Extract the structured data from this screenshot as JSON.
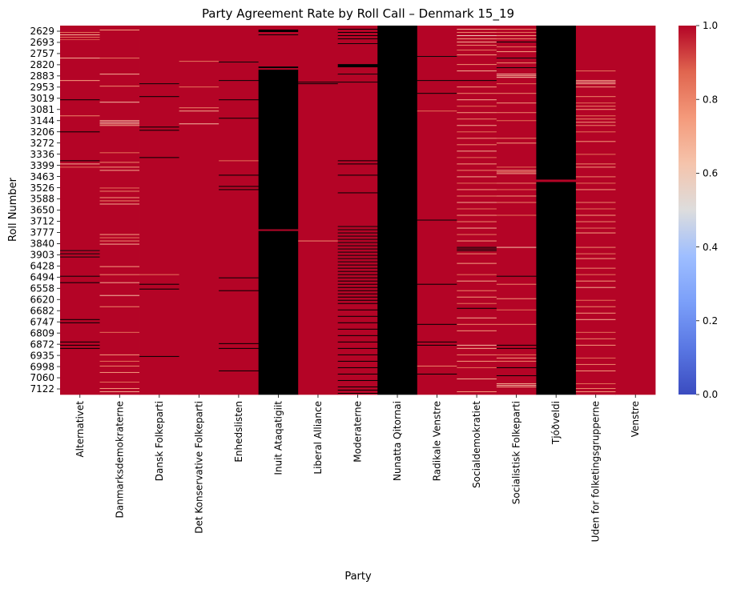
{
  "chart_data": {
    "type": "heatmap",
    "title": "Party Agreement Rate by Roll Call – Denmark 15_19",
    "xlabel": "Party",
    "ylabel": "Roll Number",
    "colormap": "coolwarm",
    "color_low": "#3b4cc0",
    "color_mid": "#dddddd",
    "color_high": "#b40426",
    "missing_color": "#000000",
    "vmin": 0.0,
    "vmax": 1.0,
    "colorbar_ticks": [
      "0.0",
      "0.2",
      "0.4",
      "0.6",
      "0.8",
      "1.0"
    ],
    "parties": [
      "Alternativet",
      "Danmarksdemokraterne",
      "Dansk Folkeparti",
      "Det Konservative Folkeparti",
      "Enhedslisten",
      "Inuit Ataqatigiit",
      "Liberal Alliance",
      "Moderaterne",
      "Nunatta Qitornai",
      "Radikale Venstre",
      "Socialdemokratiet",
      "Socialistisk Folkeparti",
      "Tjóðveldi",
      "Uden for folketingsgrupperne",
      "Venstre"
    ],
    "roll_numbers": [
      "2629",
      "2693",
      "2757",
      "2820",
      "2883",
      "2953",
      "3019",
      "3081",
      "3144",
      "3206",
      "3272",
      "3336",
      "3399",
      "3463",
      "3526",
      "3588",
      "3650",
      "3712",
      "3777",
      "3840",
      "3903",
      "6428",
      "6494",
      "6558",
      "6620",
      "6682",
      "6747",
      "6809",
      "6872",
      "6935",
      "6998",
      "7060",
      "7122"
    ],
    "n_roll_calls": 460,
    "default_value": 1.0,
    "column_overrides": [
      {
        "party": "Inuit Ataqatigiit",
        "value": null,
        "except": [
          {
            "start": 0,
            "end": 4,
            "value": 1.0
          },
          {
            "start": 8,
            "end": 10,
            "value": 1.0
          },
          {
            "start": 12,
            "end": 50,
            "value": 1.0
          },
          {
            "start": 53,
            "end": 54,
            "value": 1.0
          },
          {
            "start": 254,
            "end": 255,
            "value": 1.0
          }
        ]
      },
      {
        "party": "Nunatta Qitornai",
        "value": null
      },
      {
        "party": "Tjóðveldi",
        "value": null,
        "except_range": {
          "start": 192,
          "end": 194,
          "value": 1.0
        }
      }
    ],
    "cells": [
      {
        "party": "Alternativet",
        "rows": [
          8,
          11,
          14,
          17,
          40,
          68,
          92,
          112,
          132,
          168,
          172,
          176,
          280,
          284,
          288,
          312,
          320,
          366,
          370,
          394,
          398,
          402
        ],
        "values": [
          0.85,
          0.7,
          0.85,
          0.9,
          0.7,
          0.75,
          null,
          0.8,
          null,
          null,
          0.7,
          0.85,
          null,
          null,
          null,
          null,
          null,
          null,
          null,
          null,
          null,
          null
        ]
      },
      {
        "party": "Danmarksdemokraterne",
        "rows": [
          5,
          40,
          60,
          75,
          95,
          118,
          120,
          122,
          124,
          158,
          170,
          176,
          180,
          202,
          206,
          214,
          218,
          222,
          260,
          264,
          268,
          272,
          300,
          310,
          320,
          336,
          350,
          382,
          410,
          418,
          424,
          432,
          444,
          452,
          456
        ],
        "values": [
          0.75,
          0.85,
          0.7,
          0.8,
          0.65,
          0.65,
          0.6,
          0.65,
          0.7,
          0.85,
          0.8,
          0.75,
          0.7,
          0.85,
          0.8,
          0.75,
          0.8,
          0.7,
          0.75,
          0.85,
          0.8,
          0.7,
          0.75,
          0.8,
          0.7,
          0.65,
          0.8,
          0.85,
          0.75,
          0.85,
          0.8,
          0.75,
          0.85,
          0.75,
          0.7
        ]
      },
      {
        "party": "Dansk Folkeparti",
        "rows": [
          72,
          88,
          126,
          130,
          164,
          310,
          322,
          328,
          412
        ],
        "values": [
          null,
          null,
          null,
          null,
          null,
          0.85,
          null,
          null,
          null
        ]
      },
      {
        "party": "Det Konservative Folkeparti",
        "rows": [
          8,
          44,
          76,
          102,
          106,
          122
        ],
        "values": [
          1.0,
          0.85,
          0.85,
          0.8,
          0.7,
          0.65
        ]
      },
      {
        "party": "Enhedslisten",
        "rows": [
          45,
          68,
          92,
          115,
          168,
          186,
          200,
          204,
          314,
          330,
          396,
          402,
          430
        ],
        "values": [
          null,
          null,
          null,
          null,
          0.85,
          null,
          null,
          null,
          null,
          null,
          null,
          null,
          null
        ]
      },
      {
        "party": "Liberal Alliance",
        "rows": [
          70,
          72,
          268
        ],
        "values": [
          null,
          null,
          0.8
        ]
      },
      {
        "party": "Moderaterne",
        "rows": [
          4,
          8,
          12,
          16,
          22,
          48,
          49,
          50,
          51,
          60,
          70,
          94,
          112,
          124,
          168,
          172,
          186,
          208,
          250,
          254,
          258,
          262,
          266,
          270,
          274,
          278,
          282,
          286,
          290,
          294,
          298,
          302,
          306,
          310,
          314,
          318,
          322,
          326,
          330,
          334,
          338,
          342,
          346,
          354,
          362,
          370,
          378,
          386,
          394,
          402,
          410,
          418,
          426,
          434,
          442,
          450,
          454,
          458
        ],
        "values": [
          null,
          null,
          null,
          null,
          null,
          null,
          null,
          null,
          null,
          null,
          null,
          1.0,
          1.0,
          1.0,
          null,
          null,
          null,
          null,
          null,
          null,
          null,
          null,
          null,
          null,
          null,
          null,
          null,
          null,
          null,
          null,
          null,
          null,
          null,
          null,
          null,
          null,
          null,
          null,
          null,
          null,
          null,
          null,
          null,
          null,
          null,
          null,
          null,
          null,
          null,
          null,
          null,
          null,
          null,
          null,
          null,
          null,
          null,
          null
        ]
      },
      {
        "party": "Radikale Venstre",
        "rows": [
          18,
          38,
          68,
          84,
          106,
          242,
          322,
          372,
          394,
          398,
          424,
          434
        ],
        "values": [
          1.0,
          null,
          null,
          null,
          0.85,
          null,
          null,
          null,
          null,
          null,
          0.8,
          null
        ]
      },
      {
        "party": "Socialdemokratiet",
        "rows": [
          4,
          8,
          12,
          16,
          20,
          24,
          30,
          36,
          48,
          56,
          68,
          76,
          84,
          92,
          100,
          108,
          116,
          124,
          132,
          140,
          148,
          156,
          164,
          172,
          180,
          188,
          196,
          204,
          212,
          220,
          228,
          236,
          244,
          252,
          260,
          268,
          276,
          278,
          280,
          284,
          296,
          310,
          318,
          330,
          338,
          346,
          352,
          364,
          372,
          380,
          398,
          402,
          410,
          418,
          426,
          440,
          456
        ],
        "values": [
          0.7,
          0.8,
          0.6,
          0.75,
          0.7,
          0.8,
          0.85,
          0.75,
          0.8,
          0.7,
          null,
          0.75,
          0.8,
          0.7,
          0.85,
          0.75,
          0.8,
          0.7,
          0.85,
          0.75,
          0.8,
          0.7,
          0.85,
          0.75,
          0.8,
          0.7,
          0.85,
          0.75,
          0.8,
          0.7,
          0.85,
          0.75,
          0.8,
          0.7,
          0.85,
          0.75,
          null,
          null,
          null,
          0.8,
          0.75,
          0.85,
          0.7,
          0.8,
          0.75,
          0.85,
          null,
          0.7,
          0.8,
          0.75,
          0.65,
          0.7,
          0.8,
          0.75,
          0.85,
          0.7,
          0.75
        ]
      },
      {
        "party": "Socialistisk Folkeparti",
        "rows": [
          4,
          8,
          12,
          16,
          20,
          26,
          32,
          40,
          46,
          52,
          60,
          62,
          64,
          72,
          84,
          96,
          108,
          118,
          140,
          146,
          176,
          180,
          182,
          184,
          196,
          204,
          212,
          220,
          236,
          276,
          312,
          322,
          340,
          354,
          372,
          398,
          402,
          410,
          414,
          418,
          426,
          436,
          446,
          448,
          450
        ],
        "values": [
          0.8,
          0.85,
          0.75,
          0.8,
          null,
          0.85,
          0.75,
          null,
          0.8,
          null,
          0.65,
          0.7,
          0.65,
          0.85,
          0.8,
          0.75,
          0.8,
          0.85,
          0.8,
          0.75,
          0.85,
          0.7,
          0.75,
          0.7,
          0.8,
          0.85,
          0.75,
          0.8,
          0.85,
          0.65,
          null,
          0.8,
          0.75,
          0.85,
          0.8,
          null,
          null,
          0.85,
          0.75,
          0.8,
          null,
          null,
          0.7,
          0.65,
          0.7
        ]
      },
      {
        "party": "Uden for folketingsgrupperne",
        "rows": [
          44,
          56,
          68,
          70,
          72,
          76,
          80,
          88,
          96,
          100,
          104,
          108,
          112,
          116,
          120,
          124,
          128,
          132,
          144,
          152,
          160,
          172,
          176,
          184,
          188,
          196,
          204,
          212,
          220,
          228,
          236,
          244,
          248,
          252,
          258,
          266,
          276,
          284,
          290,
          296,
          302,
          310,
          318,
          326,
          334,
          342,
          350,
          358,
          366,
          374,
          382,
          390,
          398,
          406,
          414,
          422,
          430,
          438,
          446,
          452,
          456
        ],
        "values": [
          1.0,
          0.85,
          0.7,
          0.65,
          0.7,
          0.75,
          1.0,
          0.8,
          0.85,
          0.8,
          0.75,
          1.0,
          0.85,
          0.8,
          0.75,
          0.8,
          1.0,
          0.85,
          0.75,
          1.0,
          0.85,
          0.8,
          0.75,
          1.0,
          0.8,
          0.85,
          0.75,
          1.0,
          0.8,
          0.85,
          0.75,
          0.8,
          1.0,
          0.85,
          0.75,
          1.0,
          0.8,
          0.85,
          0.75,
          1.0,
          0.8,
          0.85,
          0.75,
          0.7,
          1.0,
          0.85,
          0.8,
          0.75,
          0.7,
          1.0,
          0.85,
          0.8,
          0.75,
          1.0,
          0.85,
          0.8,
          0.75,
          1.0,
          0.85,
          0.8,
          0.75
        ]
      }
    ]
  }
}
